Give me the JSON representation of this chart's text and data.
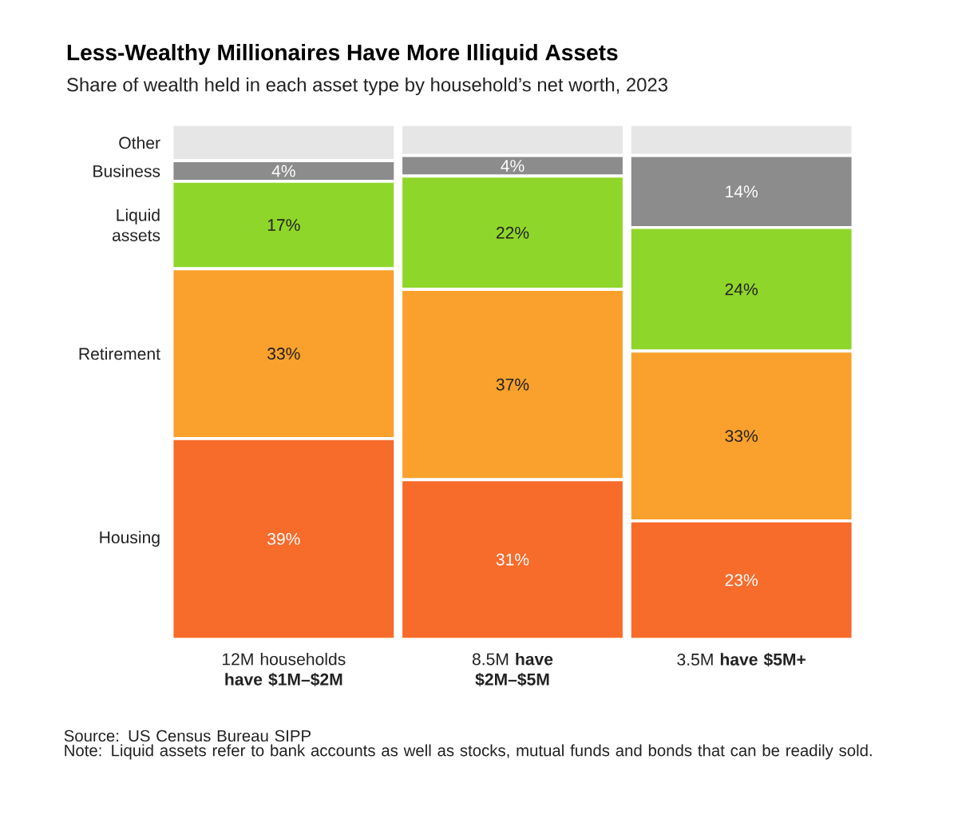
{
  "chart_data": {
    "type": "bar",
    "stacked": true,
    "title": "Less-Wealthy Millionaires Have More Illiquid Assets",
    "subtitle": "Share of wealth held in each asset type by household’s net worth, 2023",
    "categories": [
      "12M households **have $1M–$2M**",
      "8.5M **have $2M–$5M**",
      "3.5M **have $5M+**"
    ],
    "series": [
      {
        "name": "Housing",
        "color": "#f76b2b",
        "values": [
          39,
          31,
          23
        ],
        "value_labels": [
          "39%",
          "31%",
          "23%"
        ]
      },
      {
        "name": "Retirement",
        "color": "#f9a12c",
        "values": [
          33,
          37,
          33
        ],
        "value_labels": [
          "33%",
          "37%",
          "33%"
        ]
      },
      {
        "name": "Liquid assets",
        "color": "#8fd62a",
        "values": [
          17,
          22,
          24
        ],
        "value_labels": [
          "17%",
          "22%",
          "24%"
        ]
      },
      {
        "name": "Business",
        "color": "#8c8c8c",
        "values": [
          4,
          4,
          14
        ],
        "value_labels": [
          "4%",
          "4%",
          "14%"
        ]
      },
      {
        "name": "Other",
        "color": "#e6e6e6",
        "values": [
          7,
          6,
          6
        ],
        "value_labels": [
          null,
          null,
          null
        ]
      }
    ],
    "annotations": [
      "Source: US Census Bureau SIPP",
      "Note: Liquid assets refer to bank accounts as well as stocks, mutual funds and bonds that can be readily sold."
    ]
  }
}
